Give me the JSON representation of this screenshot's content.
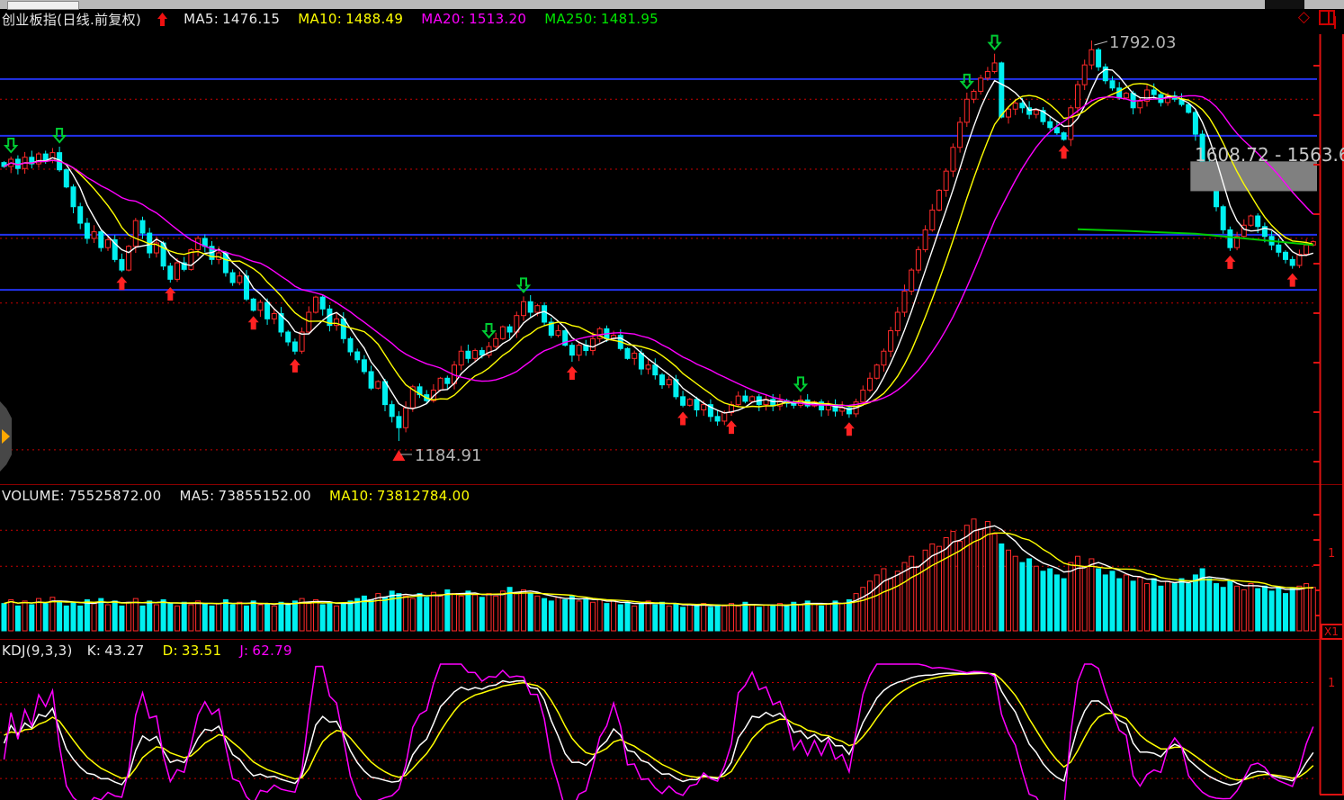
{
  "header": {
    "title": "创业板指(日线.前复权)",
    "signal_icon": "up-arrow",
    "ma_items": [
      {
        "label": "MA5:",
        "value": "1476.15",
        "color": "#e8e8e8"
      },
      {
        "label": "MA10:",
        "value": "1488.49",
        "color": "#ffff00"
      },
      {
        "label": "MA20:",
        "value": "1513.20",
        "color": "#ff00ff"
      },
      {
        "label": "MA250:",
        "value": "1481.95",
        "color": "#00e600"
      }
    ],
    "corner_icons": [
      "diamond-icon",
      "window-split-icon"
    ]
  },
  "volume_header": {
    "items": [
      {
        "label": "VOLUME:",
        "value": "75525872.00",
        "color": "#e8e8e8"
      },
      {
        "label": "MA5:",
        "value": "73855152.00",
        "color": "#e8e8e8"
      },
      {
        "label": "MA10:",
        "value": "73812784.00",
        "color": "#ffff00"
      }
    ]
  },
  "kdj_header": {
    "name": "KDJ(9,3,3)",
    "items": [
      {
        "label": "K:",
        "value": "43.27",
        "color": "#e8e8e8"
      },
      {
        "label": "D:",
        "value": "33.51",
        "color": "#ffff00"
      },
      {
        "label": "J:",
        "value": "62.79",
        "color": "#ff00ff"
      }
    ]
  },
  "annotations": {
    "peak": "1792.03",
    "low": "1184.91",
    "range": "1608.72 - 1563.6"
  },
  "right_axis": {
    "volume_scale_digit": "1",
    "volume_unit": "X1",
    "kdj_scale_digit": "1"
  },
  "colors": {
    "up": "#ff2a2a",
    "down": "#00f0f0",
    "ma5": "#ffffff",
    "ma10": "#ffff00",
    "ma20": "#ff00ff",
    "ma250": "#00cc00",
    "grid_blue": "#2233ee",
    "grid_red": "#cc0000",
    "axis": "#dd1111",
    "annotation": "#b4b4b4",
    "range_box": "#808080",
    "buy_arrow": "#ff2222",
    "sell_arrow": "#00cc33"
  },
  "chart_data": [
    {
      "type": "candlestick",
      "title": "创业板指 daily (前复权)",
      "ylim": [
        1150,
        1810
      ],
      "closes": [
        1601,
        1612,
        1598,
        1615,
        1605,
        1620,
        1610,
        1622,
        1596,
        1570,
        1540,
        1515,
        1492,
        1502,
        1478,
        1490,
        1460,
        1444,
        1480,
        1519,
        1500,
        1470,
        1485,
        1450,
        1430,
        1455,
        1445,
        1475,
        1492,
        1480,
        1460,
        1470,
        1440,
        1425,
        1435,
        1400,
        1383,
        1395,
        1370,
        1378,
        1350,
        1335,
        1321,
        1350,
        1380,
        1403,
        1385,
        1360,
        1370,
        1340,
        1320,
        1308,
        1290,
        1265,
        1275,
        1240,
        1222,
        1205,
        1235,
        1267,
        1255,
        1246,
        1262,
        1280,
        1272,
        1300,
        1321,
        1310,
        1322,
        1315,
        1328,
        1340,
        1358,
        1350,
        1375,
        1396,
        1380,
        1390,
        1365,
        1345,
        1352,
        1330,
        1315,
        1330,
        1322,
        1340,
        1355,
        1340,
        1345,
        1325,
        1310,
        1318,
        1294,
        1300,
        1285,
        1270,
        1278,
        1252,
        1239,
        1248,
        1232,
        1240,
        1222,
        1215,
        1228,
        1240,
        1253,
        1245,
        1252,
        1240,
        1248,
        1238,
        1246,
        1242,
        1239,
        1247,
        1238,
        1244,
        1232,
        1240,
        1230,
        1235,
        1226,
        1244,
        1262,
        1280,
        1300,
        1321,
        1352,
        1380,
        1412,
        1444,
        1475,
        1505,
        1535,
        1565,
        1594,
        1630,
        1668,
        1703,
        1715,
        1735,
        1745,
        1758,
        1676,
        1688,
        1697,
        1690,
        1680,
        1686,
        1669,
        1660,
        1652,
        1642,
        1690,
        1725,
        1755,
        1778,
        1752,
        1731,
        1720,
        1705,
        1712,
        1690,
        1700,
        1717,
        1710,
        1698,
        1708,
        1703,
        1695,
        1683,
        1650,
        1608,
        1575,
        1540,
        1505,
        1478,
        1495,
        1512,
        1526,
        1510,
        1495,
        1482,
        1471,
        1460,
        1451,
        1468,
        1482,
        1487
      ],
      "extremes": {
        "low_bar": 57,
        "low_value": 1184.91,
        "high_bar": 157,
        "high_value": 1792.03,
        "secondary_high_bar": 143,
        "secondary_high_value": 1772
      },
      "buy_signal_bars": [
        17,
        24,
        36,
        42,
        82,
        98,
        105,
        122,
        153,
        177,
        186
      ],
      "sell_signal_bars": [
        1,
        8,
        70,
        75,
        115,
        139,
        143
      ],
      "blue_lines": [
        1733.5,
        1647.5,
        1497.5,
        1414
      ],
      "red_dotted_lines": [
        1703,
        1597,
        1492,
        1394,
        1171.5
      ],
      "range_box": {
        "from": 1608.72,
        "to": 1563.6,
        "start_bar": 171.6
      },
      "ma_periods": [
        5,
        10,
        20
      ],
      "ma250_points": [
        [
          155,
          1506
        ],
        [
          163,
          1503
        ],
        [
          172,
          1499
        ],
        [
          180,
          1491
        ],
        [
          189,
          1482
        ]
      ]
    },
    {
      "type": "bar",
      "title": "VOLUME",
      "values_rel": [
        0.22,
        0.25,
        0.2,
        0.24,
        0.21,
        0.26,
        0.22,
        0.27,
        0.24,
        0.2,
        0.23,
        0.2,
        0.25,
        0.22,
        0.26,
        0.21,
        0.24,
        0.2,
        0.23,
        0.26,
        0.2,
        0.24,
        0.21,
        0.25,
        0.22,
        0.2,
        0.23,
        0.21,
        0.24,
        0.22,
        0.2,
        0.22,
        0.25,
        0.21,
        0.23,
        0.2,
        0.24,
        0.21,
        0.22,
        0.2,
        0.23,
        0.21,
        0.24,
        0.26,
        0.22,
        0.25,
        0.21,
        0.23,
        0.2,
        0.22,
        0.24,
        0.26,
        0.28,
        0.25,
        0.3,
        0.27,
        0.32,
        0.3,
        0.28,
        0.26,
        0.3,
        0.27,
        0.31,
        0.28,
        0.33,
        0.3,
        0.28,
        0.32,
        0.29,
        0.27,
        0.3,
        0.28,
        0.32,
        0.35,
        0.3,
        0.33,
        0.3,
        0.28,
        0.26,
        0.24,
        0.27,
        0.25,
        0.28,
        0.24,
        0.26,
        0.23,
        0.25,
        0.22,
        0.24,
        0.21,
        0.23,
        0.2,
        0.22,
        0.24,
        0.21,
        0.23,
        0.2,
        0.22,
        0.19,
        0.21,
        0.2,
        0.22,
        0.19,
        0.21,
        0.2,
        0.22,
        0.2,
        0.23,
        0.21,
        0.19,
        0.21,
        0.2,
        0.22,
        0.2,
        0.23,
        0.21,
        0.24,
        0.22,
        0.2,
        0.22,
        0.24,
        0.22,
        0.25,
        0.3,
        0.35,
        0.4,
        0.45,
        0.5,
        0.42,
        0.48,
        0.55,
        0.6,
        0.52,
        0.65,
        0.7,
        0.68,
        0.75,
        0.8,
        0.72,
        0.85,
        0.9,
        0.82,
        0.88,
        0.78,
        0.7,
        0.65,
        0.6,
        0.55,
        0.58,
        0.52,
        0.48,
        0.5,
        0.45,
        0.42,
        0.55,
        0.6,
        0.52,
        0.58,
        0.5,
        0.45,
        0.48,
        0.42,
        0.45,
        0.4,
        0.43,
        0.38,
        0.42,
        0.36,
        0.4,
        0.38,
        0.42,
        0.38,
        0.45,
        0.5,
        0.42,
        0.38,
        0.35,
        0.4,
        0.36,
        0.33,
        0.38,
        0.34,
        0.36,
        0.32,
        0.35,
        0.3,
        0.34,
        0.36,
        0.38,
        0.35
      ],
      "ma_periods": [
        5,
        10
      ],
      "dotted_levels_rel": [
        0.81,
        0.52
      ]
    },
    {
      "type": "line",
      "title": "KDJ",
      "params": [
        9,
        3,
        3
      ],
      "current": {
        "k": 43.27,
        "d": 33.51,
        "j": 62.79
      },
      "gridline_values": [
        90,
        72,
        49,
        26,
        11
      ],
      "range": [
        0,
        100
      ]
    }
  ]
}
